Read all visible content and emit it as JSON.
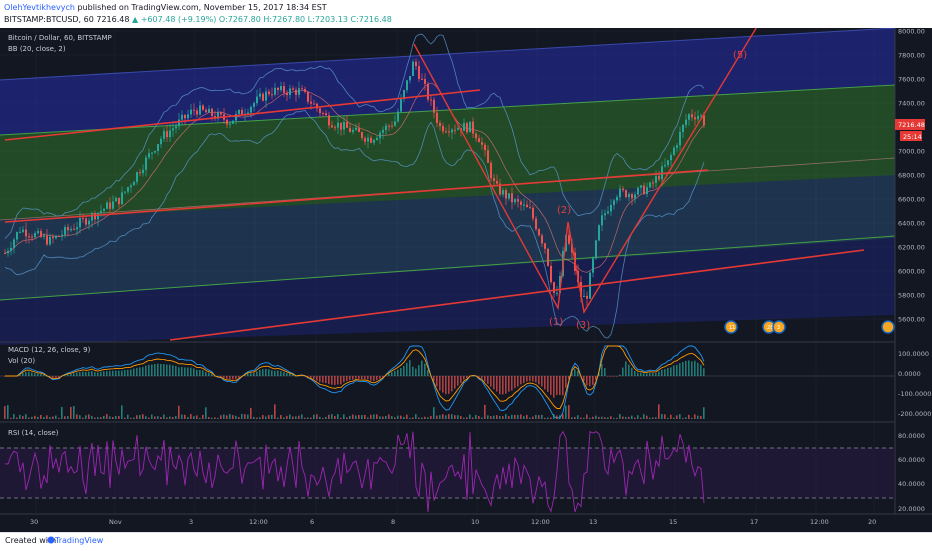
{
  "header": {
    "author": "OlehYevtikhevych",
    "published": "published on TradingView.com, November 15, 2017 18:34 EST",
    "symbol": "BITSTAMP:BTCUSD, 60",
    "last": "7216.48",
    "change": "▲ +607.48 (+9.19%)",
    "ohlc": "O:7267.80 H:7267.80 L:7203.13 C:7216.48"
  },
  "panes": {
    "main_title": "Bitcoin / Dollar, 60, BITSTAMP",
    "bb_label": "BB (20, close, 2)",
    "macd_label": "MACD (12, 26, close, 9)",
    "vol_label": "Vol (20)",
    "rsi_label": "RSI (14, close)"
  },
  "price_badge": {
    "value": "7216.48",
    "countdown": "25:14",
    "color": "#e53935"
  },
  "waves": [
    "(1)",
    "(2)",
    "(3)",
    "(5)"
  ],
  "price_axis": [
    "8000.00",
    "7800.00",
    "7600.00",
    "7400.00",
    "7200.00",
    "7000.00",
    "6800.00",
    "6600.00",
    "6400.00",
    "6200.00",
    "6000.00",
    "5800.00",
    "5600.00"
  ],
  "macd_axis": [
    "100.0000",
    "0.0000",
    "-100.0000",
    "-200.0000"
  ],
  "rsi_axis": [
    "80.0000",
    "60.0000",
    "40.0000",
    "20.0000"
  ],
  "time_axis": [
    "30",
    "Nov",
    "3",
    "12:00",
    "6",
    "8",
    "10",
    "12:00",
    "13",
    "15",
    "17",
    "12:00",
    "20"
  ],
  "events": [
    "11",
    "28",
    "3"
  ],
  "footer": {
    "created": "Created with",
    "brand": "TradingView"
  },
  "colors": {
    "background": "#131722",
    "channel_blue": "#1c2370",
    "channel_green": "#234d23",
    "trendline": "#e53935",
    "bb": "#5b9bd5",
    "macd": "#2196f3",
    "signal": "#ff9800",
    "rsi": "#9c27b0",
    "candle_up": "#26a69a",
    "candle_down": "#ef5350"
  }
}
